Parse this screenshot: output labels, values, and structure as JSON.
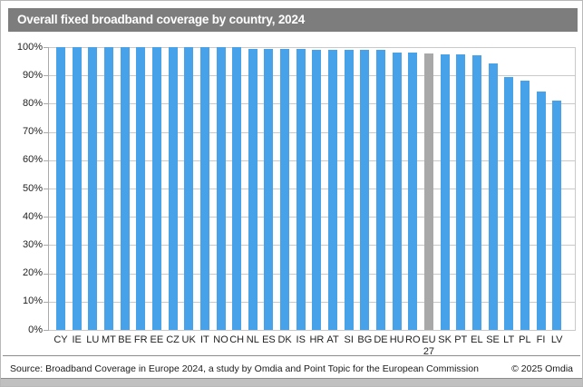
{
  "title": "Overall fixed broadband coverage by country, 2024",
  "footer": {
    "source": "Source: Broadband Coverage in Europe 2024, a study by Omdia and Point Topic for the European Commission",
    "copyright": "© 2025 Omdia"
  },
  "colors": {
    "bar": "#47a2e9",
    "highlight_bar": "#a8a8a8",
    "title_bg": "#7d7d7d",
    "gridline": "#c9c9c9",
    "axis_text": "#1f1f1f"
  },
  "chart_data": {
    "type": "bar",
    "title": "Overall fixed broadband coverage by country, 2024",
    "categories": [
      "CY",
      "IE",
      "LU",
      "MT",
      "BE",
      "FR",
      "EE",
      "CZ",
      "UK",
      "IT",
      "NO",
      "CH",
      "NL",
      "ES",
      "DK",
      "IS",
      "HR",
      "AT",
      "SI",
      "BG",
      "DE",
      "HU",
      "RO",
      "EU 27",
      "SK",
      "PT",
      "EL",
      "SE",
      "LT",
      "PL",
      "FI",
      "LV"
    ],
    "values": [
      100,
      100,
      100,
      100,
      100,
      100,
      100,
      100,
      100,
      100,
      99.9,
      99.9,
      99.5,
      99.5,
      99.4,
      99.4,
      99.2,
      99.1,
      99.0,
      99.0,
      98.9,
      98.0,
      98.0,
      97.9,
      97.6,
      97.4,
      97.2,
      94.3,
      89.3,
      88.0,
      84.3,
      81.2
    ],
    "highlight_category": "EU 27",
    "xlabel": "",
    "ylabel": "",
    "ylim": [
      0,
      100
    ],
    "ytick_step": 10,
    "ytick_format": "percent",
    "grid": true,
    "legend": false
  }
}
